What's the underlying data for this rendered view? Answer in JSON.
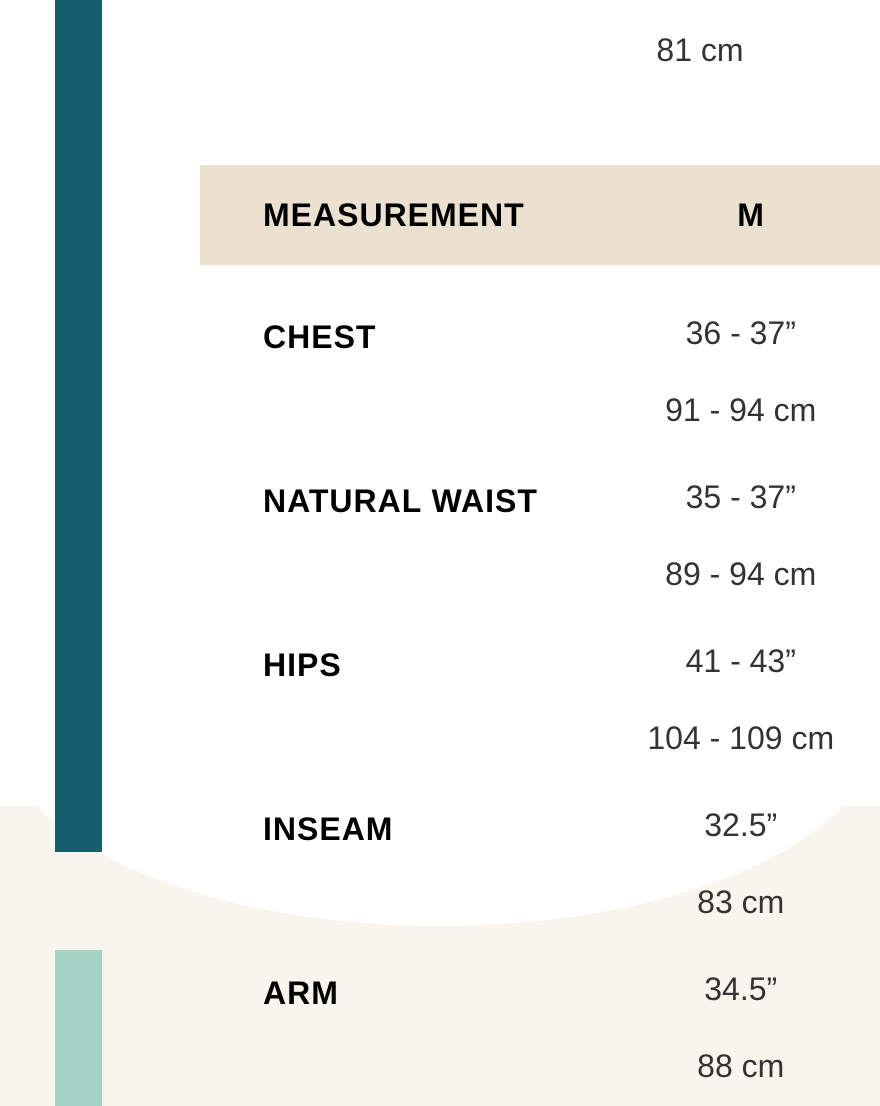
{
  "colors": {
    "sidebar_dark": "#16606e",
    "sidebar_light": "#a6d2c8",
    "header_bg": "#ece0d1",
    "text": "#2b2b2b",
    "bg_cream": "#f8f5ec"
  },
  "top_value": "81 cm",
  "header": {
    "col1": "MEASUREMENT",
    "col2": "M"
  },
  "rows": [
    {
      "label": "CHEST",
      "inches": "36 - 37”",
      "cm": "91 - 94 cm"
    },
    {
      "label": "NATURAL WAIST",
      "inches": "35 - 37”",
      "cm": "89 - 94 cm"
    },
    {
      "label": "HIPS",
      "inches": "41 - 43”",
      "cm": "104 - 109 cm"
    },
    {
      "label": "INSEAM",
      "inches": "32.5”",
      "cm": "83 cm"
    },
    {
      "label": "ARM",
      "inches": "34.5”",
      "cm": "88 cm"
    }
  ]
}
